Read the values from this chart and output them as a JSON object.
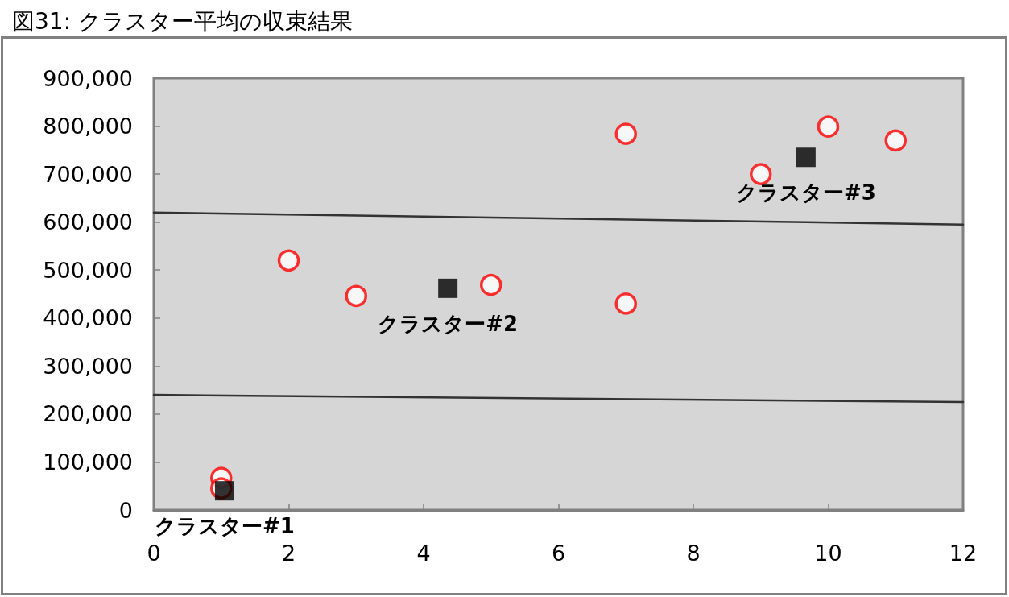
{
  "chart_data": {
    "type": "scatter",
    "title": "図31: クラスター平均の収束結果",
    "xlim": [
      0,
      12
    ],
    "xticks": [
      0,
      2,
      4,
      6,
      8,
      10,
      12
    ],
    "ylim": [
      0,
      900000
    ],
    "yticks": [
      {
        "value": 0,
        "label": "0"
      },
      {
        "value": 100000,
        "label": "100,000"
      },
      {
        "value": 200000,
        "label": "200,000"
      },
      {
        "value": 300000,
        "label": "300,000"
      },
      {
        "value": 400000,
        "label": "400,000"
      },
      {
        "value": 500000,
        "label": "500,000"
      },
      {
        "value": 600000,
        "label": "600,000"
      },
      {
        "value": 700000,
        "label": "700,000"
      },
      {
        "value": 800000,
        "label": "800,000"
      },
      {
        "value": 900000,
        "label": "900,000"
      }
    ],
    "grid": false,
    "series": [
      {
        "type": "line",
        "color": "#333333",
        "marker": "none",
        "x": [
          0,
          12
        ],
        "values": [
          620000,
          595000
        ]
      },
      {
        "type": "line",
        "color": "#333333",
        "marker": "none",
        "x": [
          0,
          12
        ],
        "values": [
          240000,
          225000
        ]
      },
      {
        "color": "#ff0000",
        "marker": "circle",
        "x": [
          1,
          1,
          2,
          3,
          5,
          7,
          7,
          9,
          10,
          11
        ],
        "values": [
          67000,
          45000,
          520000,
          446000,
          469000,
          784000,
          430000,
          700000,
          799000,
          770000
        ]
      },
      {
        "color": "#000000",
        "marker": "square",
        "x": [
          1.05,
          4.36,
          9.67
        ],
        "values": [
          40000,
          462000,
          735000
        ]
      }
    ],
    "annotations": [
      {
        "text": "クラスター#1",
        "x": 1.05,
        "y": 40000
      },
      {
        "text": "クラスター#2",
        "x": 4.36,
        "y": 462000
      },
      {
        "text": "クラスター#3",
        "x": 9.67,
        "y": 735000
      }
    ]
  }
}
